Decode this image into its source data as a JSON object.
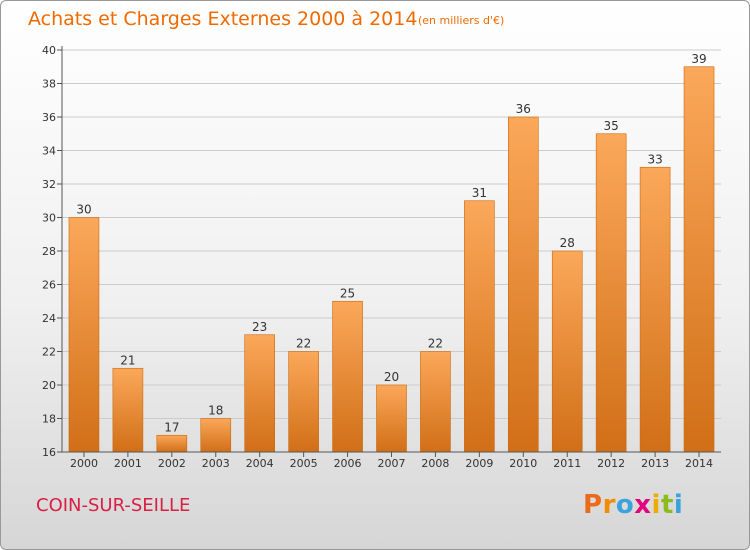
{
  "header": {
    "title": "Achats et Charges Externes 2000 à 2014",
    "unit": "(en milliers d'€)"
  },
  "footer": {
    "location": "COIN-SUR-SEILLE",
    "brand_letters": [
      "P",
      "r",
      "o",
      "x",
      "i",
      "t",
      "i"
    ],
    "brand_colors": [
      "#ec6a1b",
      "#f28c00",
      "#3aa2dc",
      "#e5007e",
      "#f2a900",
      "#8bbb1d",
      "#3aa2dc"
    ]
  },
  "colors": {
    "bar_top": "#fba85a",
    "bar_bottom": "#d16f17",
    "bar_edge": "#c9690f",
    "grid": "#cccccc",
    "axis": "#555555",
    "text": "#333333"
  },
  "chart_data": {
    "type": "bar",
    "categories": [
      "2000",
      "2001",
      "2002",
      "2003",
      "2004",
      "2005",
      "2006",
      "2007",
      "2008",
      "2009",
      "2010",
      "2011",
      "2012",
      "2013",
      "2014"
    ],
    "values": [
      30,
      21,
      17,
      18,
      23,
      22,
      25,
      20,
      22,
      31,
      36,
      28,
      35,
      33,
      39
    ],
    "value_labels": [
      "30",
      "21",
      "17",
      "18",
      "23",
      "22",
      "25",
      "20",
      "22",
      "31",
      "36",
      "28",
      "35",
      "33",
      "39"
    ],
    "y_ticks": [
      "16",
      "18",
      "20",
      "22",
      "24",
      "26",
      "28",
      "30",
      "32",
      "34",
      "36",
      "38",
      "40"
    ],
    "ylim": [
      16,
      40
    ],
    "grid": true,
    "legend": "none"
  }
}
